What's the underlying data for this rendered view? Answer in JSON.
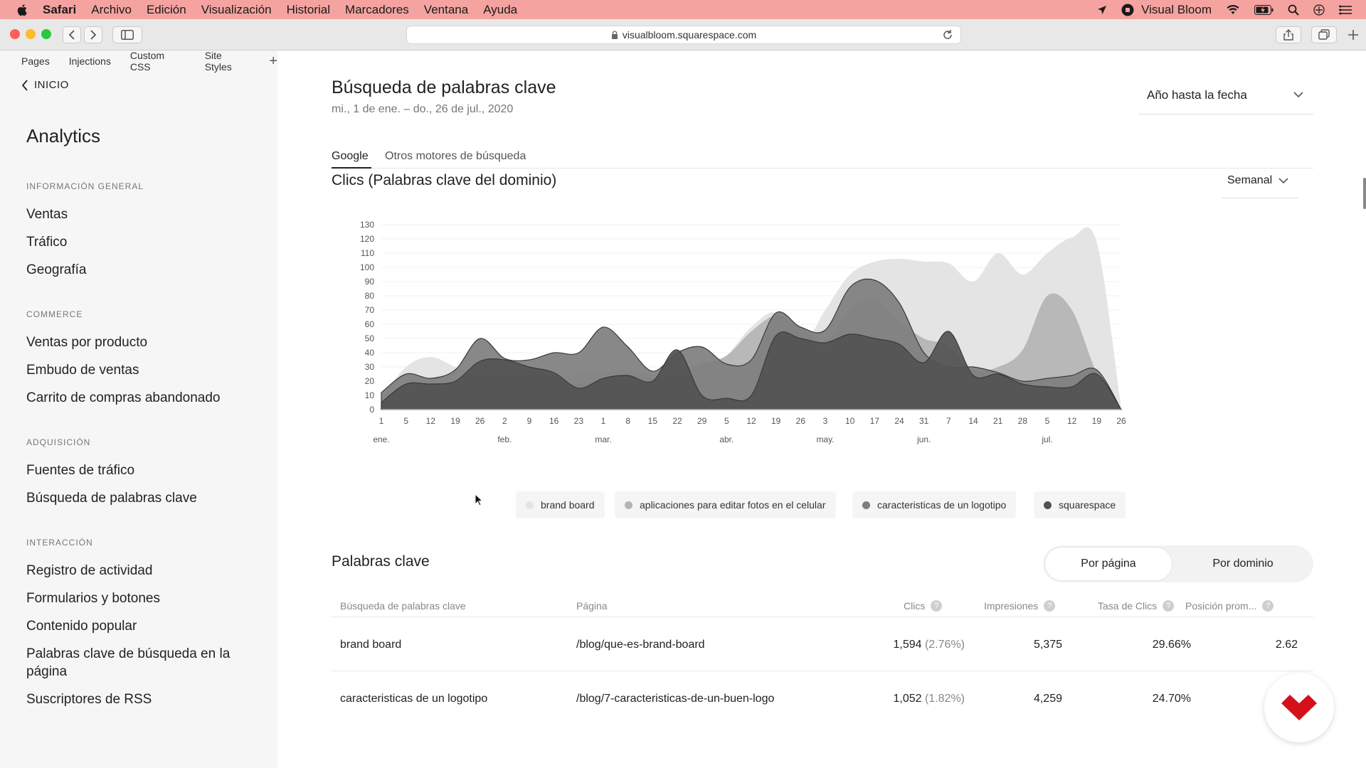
{
  "menubar": {
    "items": [
      "Safari",
      "Archivo",
      "Edición",
      "Visualización",
      "Historial",
      "Marcadores",
      "Ventana",
      "Ayuda"
    ],
    "app_name": "Visual Bloom",
    "icons": [
      "location-icon",
      "record-icon",
      "wifi-icon",
      "battery-icon",
      "search-icon",
      "siri-icon",
      "control-center-icon"
    ]
  },
  "browser": {
    "url": "visualbloom.squarespace.com"
  },
  "sidebar": {
    "tabs": [
      "Pages",
      "Injections",
      "Custom CSS",
      "Site Styles"
    ],
    "back_label": "INICIO",
    "title": "Analytics",
    "sections": [
      {
        "label": "INFORMACIÓN GENERAL",
        "items": [
          "Ventas",
          "Tráfico",
          "Geografía"
        ]
      },
      {
        "label": "COMMERCE",
        "items": [
          "Ventas por producto",
          "Embudo de ventas",
          "Carrito de compras abandonado"
        ]
      },
      {
        "label": "ADQUISICIÓN",
        "items": [
          "Fuentes de tráfico",
          "Búsqueda de palabras clave"
        ]
      },
      {
        "label": "INTERACCIÓN",
        "items": [
          "Registro de actividad",
          "Formularios y botones",
          "Contenido popular",
          "Palabras clave de búsqueda en la página",
          "Suscriptores de RSS"
        ]
      }
    ]
  },
  "main": {
    "title": "Búsqueda de palabras clave",
    "date_range": "mi., 1 de ene. – do., 26 de jul., 2020",
    "range_select": "Año hasta la fecha",
    "tabs": [
      "Google",
      "Otros motores de búsqueda"
    ],
    "chart_title": "Clics (Palabras clave del dominio)",
    "frequency": "Semanal",
    "keywords_title": "Palabras clave",
    "segment": {
      "active": "Por página",
      "inactive": "Por dominio"
    },
    "table": {
      "headers": [
        "Búsqueda de palabras clave",
        "Página",
        "Clics",
        "Impresiones",
        "Tasa de Clics",
        "Posición prom..."
      ],
      "rows": [
        {
          "keyword": "brand board",
          "page": "/blog/que-es-brand-board",
          "clicks": "1,594",
          "clicks_pct": "(2.76%)",
          "impressions": "5,375",
          "ctr": "29.66%",
          "position": "2.62"
        },
        {
          "keyword": "caracteristicas de un logotipo",
          "page": "/blog/7-caracteristicas-de-un-buen-logo",
          "clicks": "1,052",
          "clicks_pct": "(1.82%)",
          "impressions": "4,259",
          "ctr": "24.70%",
          "position": ""
        }
      ]
    }
  },
  "chart_data": {
    "type": "area",
    "x": [
      "1",
      "5",
      "12",
      "19",
      "26",
      "2",
      "9",
      "16",
      "23",
      "1",
      "8",
      "15",
      "22",
      "29",
      "5",
      "12",
      "19",
      "26",
      "3",
      "10",
      "17",
      "24",
      "31",
      "7",
      "14",
      "21",
      "28",
      "5",
      "12",
      "19",
      "26"
    ],
    "month_labels": [
      {
        "label": "ene.",
        "index": 0
      },
      {
        "label": "feb.",
        "index": 5
      },
      {
        "label": "mar.",
        "index": 9
      },
      {
        "label": "abr.",
        "index": 14
      },
      {
        "label": "may.",
        "index": 18
      },
      {
        "label": "jun.",
        "index": 22
      },
      {
        "label": "jul.",
        "index": 27
      }
    ],
    "yticks": [
      0,
      10,
      20,
      30,
      40,
      50,
      60,
      70,
      80,
      90,
      100,
      110,
      120,
      130
    ],
    "ylim": [
      0,
      130
    ],
    "series": [
      {
        "name": "brand board",
        "color": "#e4e4e4",
        "values": [
          8,
          30,
          37,
          30,
          24,
          27,
          26,
          24,
          25,
          26,
          28,
          24,
          24,
          26,
          38,
          58,
          68,
          45,
          70,
          95,
          104,
          106,
          104,
          103,
          90,
          110,
          95,
          110,
          121,
          118,
          0
        ]
      },
      {
        "name": "aplicaciones para editar fotos en el celular",
        "color": "#b4b4b4",
        "values": [
          5,
          15,
          18,
          16,
          20,
          22,
          22,
          20,
          18,
          20,
          24,
          22,
          26,
          32,
          38,
          55,
          66,
          58,
          48,
          70,
          78,
          62,
          50,
          45,
          28,
          30,
          42,
          80,
          70,
          26,
          0
        ]
      },
      {
        "name": "caracteristicas de un logotipo",
        "color": "#7e7e7e",
        "values": [
          12,
          25,
          22,
          28,
          50,
          36,
          35,
          40,
          40,
          58,
          44,
          27,
          40,
          44,
          32,
          35,
          68,
          58,
          56,
          86,
          91,
          75,
          40,
          30,
          30,
          26,
          20,
          22,
          24,
          28,
          0
        ]
      },
      {
        "name": "squarespace",
        "color": "#525252",
        "values": [
          5,
          18,
          18,
          20,
          34,
          35,
          30,
          26,
          15,
          22,
          24,
          20,
          42,
          10,
          8,
          10,
          52,
          50,
          47,
          53,
          50,
          46,
          33,
          55,
          24,
          25,
          18,
          16,
          16,
          25,
          0
        ]
      }
    ]
  }
}
